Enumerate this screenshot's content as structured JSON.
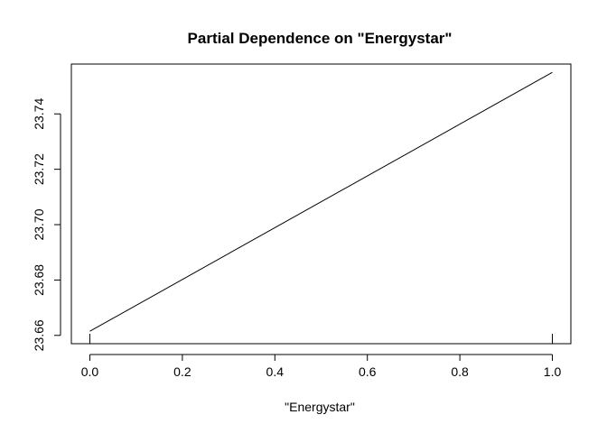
{
  "chart_data": {
    "type": "line",
    "title": "Partial Dependence on \"Energystar\"",
    "xlabel": "\"Energystar\"",
    "ylabel": "",
    "xlim": [
      -0.04,
      1.04
    ],
    "ylim": [
      23.657,
      23.758
    ],
    "x_ticks": [
      "0.0",
      "0.2",
      "0.4",
      "0.6",
      "0.8",
      "1.0"
    ],
    "y_ticks": [
      "23.66",
      "23.68",
      "23.70",
      "23.72",
      "23.74"
    ],
    "series": [
      {
        "x": [
          0.0,
          1.0
        ],
        "y": [
          23.6615,
          23.755
        ]
      }
    ],
    "rug": [
      0.0,
      1.0
    ],
    "grid": false,
    "colors": {
      "line": "#000000",
      "axis": "#000000"
    }
  }
}
